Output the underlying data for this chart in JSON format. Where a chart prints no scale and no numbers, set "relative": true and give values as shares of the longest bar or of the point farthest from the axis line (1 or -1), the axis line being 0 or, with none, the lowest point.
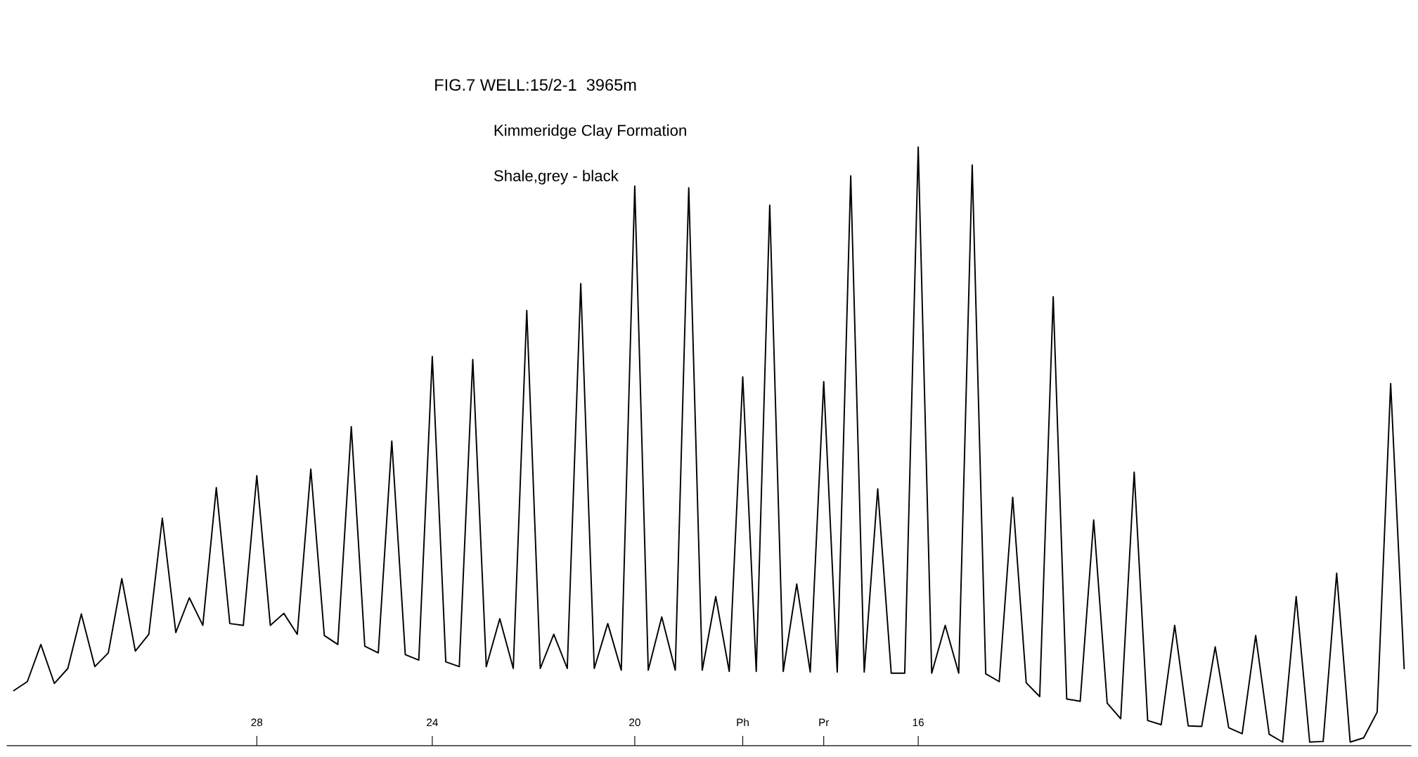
{
  "chart_data": {
    "type": "line",
    "title": "FIG.7 WELL:15/2-1  3965m",
    "subtitle": "Kimmeridge Clay Formation",
    "annotations": [
      "Shale,grey - black"
    ],
    "relative": true,
    "grid": false,
    "legend": false,
    "marker": "none",
    "line_style": "solid",
    "categories": [
      null,
      null,
      null,
      null,
      null,
      null,
      null,
      null,
      null,
      null,
      null,
      null,
      null,
      null,
      null,
      null,
      null,
      null,
      "28",
      null,
      null,
      null,
      null,
      null,
      null,
      null,
      null,
      null,
      null,
      null,
      null,
      "24",
      null,
      null,
      null,
      null,
      null,
      null,
      null,
      null,
      null,
      null,
      null,
      null,
      null,
      null,
      "20",
      null,
      null,
      null,
      null,
      null,
      null,
      null,
      "Ph",
      null,
      null,
      null,
      null,
      null,
      "Pr",
      null,
      null,
      null,
      null,
      null,
      null,
      "16",
      null,
      null,
      null,
      null,
      null,
      null,
      null,
      null,
      null,
      null,
      null,
      null,
      null,
      null,
      null,
      null,
      null,
      null,
      null,
      null,
      null,
      null,
      null,
      null,
      null,
      null,
      null,
      null,
      null,
      null,
      null,
      null,
      null,
      null,
      null,
      null
    ],
    "tick_labels": "x",
    "series": [
      {
        "color": "#000000",
        "values": [
          0.092,
          0.107,
          0.169,
          0.104,
          0.129,
          0.22,
          0.132,
          0.155,
          0.279,
          0.158,
          0.186,
          0.38,
          0.189,
          0.247,
          0.201,
          0.431,
          0.204,
          0.201,
          0.451,
          0.201,
          0.221,
          0.186,
          0.462,
          0.184,
          0.169,
          0.533,
          0.166,
          0.155,
          0.509,
          0.152,
          0.143,
          0.65,
          0.14,
          0.132,
          0.645,
          0.132,
          0.212,
          0.129,
          0.727,
          0.129,
          0.186,
          0.129,
          0.772,
          0.129,
          0.204,
          0.126,
          0.935,
          0.126,
          0.215,
          0.126,
          0.932,
          0.126,
          0.249,
          0.124,
          0.616,
          0.124,
          0.903,
          0.124,
          0.27,
          0.123,
          0.608,
          0.123,
          0.952,
          0.123,
          0.429,
          0.121,
          0.121,
          1,
          0.121,
          0.201,
          0.121,
          0.97,
          0.12,
          0.107,
          0.415,
          0.105,
          0.082,
          0.75,
          0.078,
          0.074,
          0.377,
          0.071,
          0.045,
          0.457,
          0.042,
          0.035,
          0.201,
          0.033,
          0.032,
          0.165,
          0.03,
          0.02,
          0.184,
          0.019,
          0.006,
          0.249,
          0.006,
          0.007,
          0.288,
          0.006,
          0.013,
          0.056,
          0.605,
          0.129
        ]
      }
    ]
  }
}
